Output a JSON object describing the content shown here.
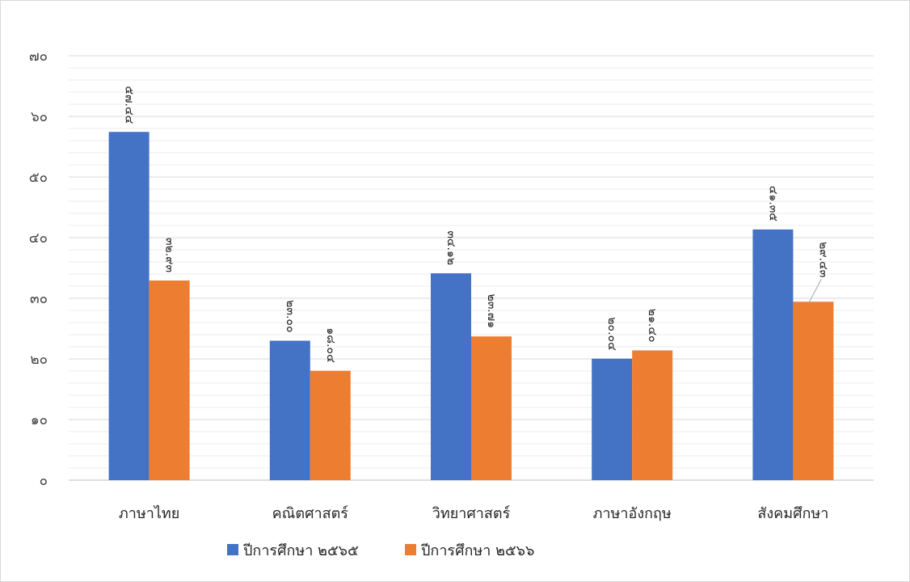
{
  "chart_data": {
    "type": "bar",
    "title": "",
    "xlabel": "",
    "ylabel": "",
    "ylim": [
      0,
      70
    ],
    "y_major_ticks": [
      0,
      10,
      20,
      30,
      40,
      50,
      60,
      70
    ],
    "y_tick_labels": [
      "๐",
      "๑๐",
      "๒๐",
      "๓๐",
      "๔๐",
      "๕๐",
      "๖๐",
      "๗๐"
    ],
    "grid": "major and minor horizontal gridlines",
    "legend_position": "bottom",
    "categories": [
      "ภาษาไทย",
      "คณิตศาสตร์",
      "วิทยาศาสตร์",
      "ภาษาอังกฤษ",
      "สังคมศึกษา"
    ],
    "series": [
      {
        "name": "ปีการศึกษา ๒๕๖๕",
        "color": "#4472c4",
        "values": [
          57.44,
          23.0,
          34.12,
          20.04,
          41.35
        ],
        "labels": [
          "๕๗.๔๔",
          "๒๓.๐๐",
          "๓๔.๑๒",
          "๒๐.๐๔",
          "๔๑.๓๕"
        ]
      },
      {
        "name": "ปีการศึกษา ๒๕๖๖",
        "color": "#ed7d31",
        "values": [
          32.93,
          18.04,
          23.71,
          21.4,
          29.43
        ],
        "labels": [
          "๓๒.๙๓",
          "๑๘.๐๔",
          "๒๓.๗๑",
          "๒๑.๔๐",
          "๒๙.๔๓"
        ]
      }
    ]
  }
}
